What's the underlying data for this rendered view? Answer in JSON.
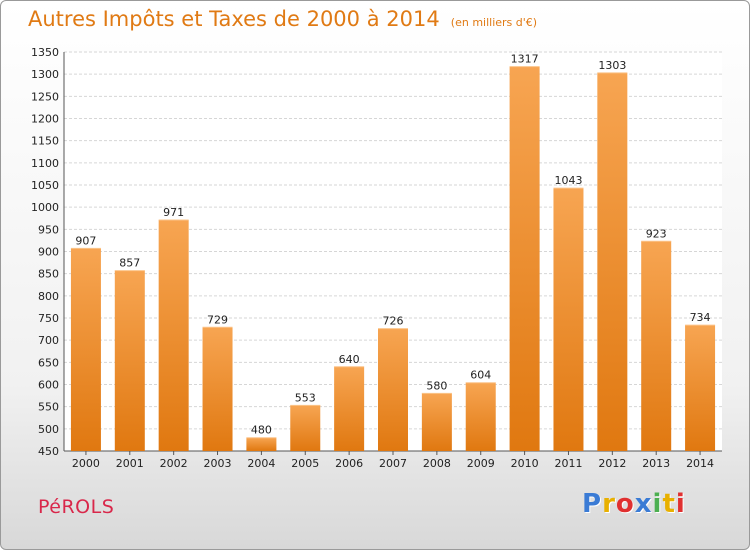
{
  "header": {
    "title": "Autres Impôts et Taxes de 2000 à 2014",
    "subtitle": "(en milliers d'€)"
  },
  "footer": {
    "commune": "PéROLS",
    "logo_letters": [
      "P",
      "r",
      "o",
      "x",
      "i",
      "t",
      "i"
    ],
    "logo_colors": [
      "#3a7bd5",
      "#e8b000",
      "#e03030",
      "#3a7bd5",
      "#4caf50",
      "#e8b000",
      "#e03030"
    ]
  },
  "colors": {
    "bar": "#f08c2a",
    "bar_light": "#f7a552",
    "bar_dark": "#e07810",
    "accent": "#e07a14"
  },
  "chart_data": {
    "type": "bar",
    "title": "Autres Impôts et Taxes de 2000 à 2014",
    "subtitle": "(en milliers d'€)",
    "categories": [
      "2000",
      "2001",
      "2002",
      "2003",
      "2004",
      "2005",
      "2006",
      "2007",
      "2008",
      "2009",
      "2010",
      "2011",
      "2012",
      "2013",
      "2014"
    ],
    "values": [
      907,
      857,
      971,
      729,
      480,
      553,
      640,
      726,
      580,
      604,
      1317,
      1043,
      1303,
      923,
      734
    ],
    "ylim": [
      450,
      1350
    ],
    "yticks": [
      450,
      500,
      550,
      600,
      650,
      700,
      750,
      800,
      850,
      900,
      950,
      1000,
      1050,
      1100,
      1150,
      1200,
      1250,
      1300,
      1350
    ],
    "grid": "horizontal",
    "xlabel": "",
    "ylabel": ""
  }
}
